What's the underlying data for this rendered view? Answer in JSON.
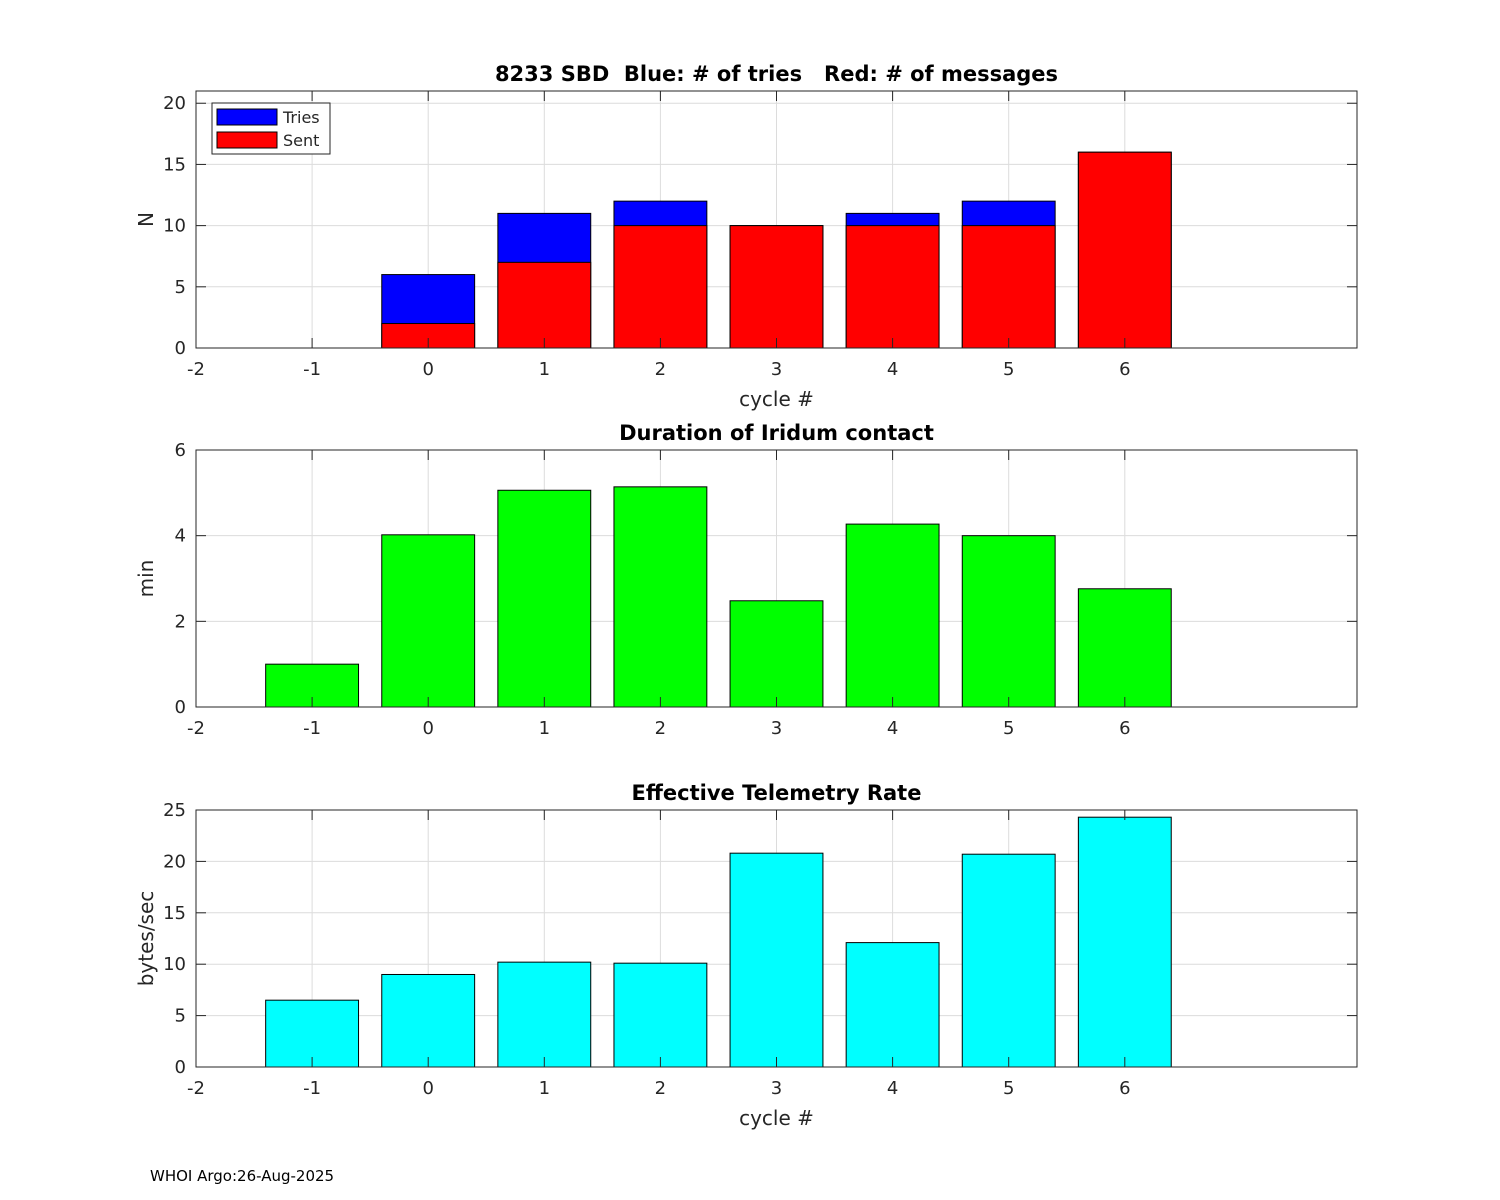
{
  "footer": {
    "label": "WHOI Argo:26-Aug-2025"
  },
  "colors": {
    "tries": "#0000ff",
    "sent": "#ff0000",
    "duration": "#00ff00",
    "rate": "#00ffff",
    "grid": "#dcdcdc",
    "axis": "#262626"
  },
  "chart_data": [
    {
      "type": "bar",
      "stacked_overlay": true,
      "title": "8233 SBD  Blue: # of tries   Red: # of messages",
      "xlabel": "cycle #",
      "ylabel": "N",
      "xlim": [
        -2,
        8
      ],
      "ylim": [
        0,
        21
      ],
      "xticks": [
        -2,
        -1,
        0,
        1,
        2,
        3,
        4,
        5,
        6
      ],
      "yticks": [
        0,
        5,
        10,
        15,
        20
      ],
      "grid": true,
      "legend": {
        "placement": "top-left",
        "entries": [
          "Tries",
          "Sent"
        ]
      },
      "series": [
        {
          "name": "Tries",
          "color": "#0000ff",
          "x": [
            0,
            1,
            2,
            3,
            4,
            5,
            6
          ],
          "values": [
            6,
            11,
            12,
            10,
            11,
            12,
            16
          ]
        },
        {
          "name": "Sent",
          "color": "#ff0000",
          "x": [
            0,
            1,
            2,
            3,
            4,
            5,
            6
          ],
          "values": [
            2,
            7,
            10,
            10,
            10,
            10,
            16
          ]
        }
      ]
    },
    {
      "type": "bar",
      "title": "Duration of Iridum contact",
      "xlabel": "",
      "ylabel": "min",
      "xlim": [
        -2,
        8
      ],
      "ylim": [
        0,
        6
      ],
      "xticks": [
        -2,
        -1,
        0,
        1,
        2,
        3,
        4,
        5,
        6
      ],
      "yticks": [
        0,
        2,
        4,
        6
      ],
      "grid": true,
      "series": [
        {
          "name": "Duration",
          "color": "#00ff00",
          "x": [
            -1,
            0,
            1,
            2,
            3,
            4,
            5,
            6
          ],
          "values": [
            1.0,
            4.02,
            5.06,
            5.14,
            2.48,
            4.27,
            4.0,
            2.76
          ]
        }
      ]
    },
    {
      "type": "bar",
      "title": "Effective Telemetry Rate",
      "xlabel": "cycle #",
      "ylabel": "bytes/sec",
      "xlim": [
        -2,
        8
      ],
      "ylim": [
        0,
        25
      ],
      "xticks": [
        -2,
        -1,
        0,
        1,
        2,
        3,
        4,
        5,
        6
      ],
      "yticks": [
        0,
        5,
        10,
        15,
        20,
        25
      ],
      "grid": true,
      "series": [
        {
          "name": "Rate",
          "color": "#00ffff",
          "x": [
            -1,
            0,
            1,
            2,
            3,
            4,
            5,
            6
          ],
          "values": [
            6.5,
            9.0,
            10.2,
            10.1,
            20.8,
            12.1,
            20.7,
            24.3
          ]
        }
      ]
    }
  ]
}
